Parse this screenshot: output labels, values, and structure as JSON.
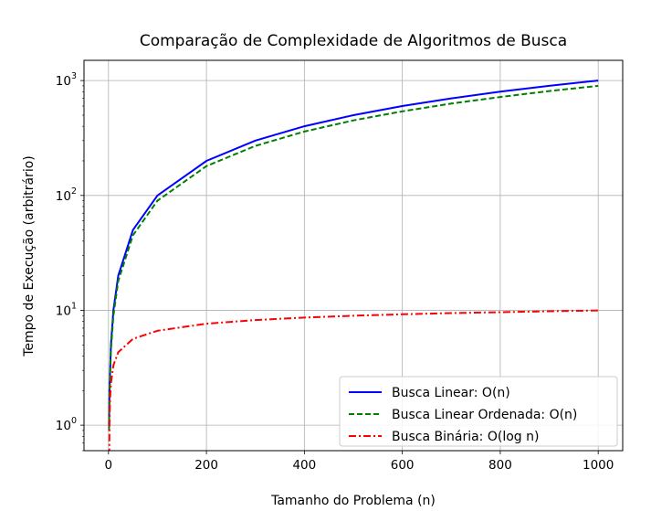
{
  "chart_data": {
    "type": "line",
    "title": "Comparação de Complexidade de Algoritmos de Busca",
    "xlabel": "Tamanho do Problema (n)",
    "ylabel": "Tempo de Execução (arbitrário)",
    "xscale": "linear",
    "yscale": "log",
    "xlim": [
      -50,
      1050
    ],
    "ylim": [
      0.6,
      1500
    ],
    "x_ticks": [
      0,
      200,
      400,
      600,
      800,
      1000
    ],
    "x_tick_labels": [
      "0",
      "200",
      "400",
      "600",
      "800",
      "1000"
    ],
    "y_ticks": [
      1,
      10,
      100,
      1000
    ],
    "y_tick_labels": [
      {
        "base": "10",
        "exp": "0"
      },
      {
        "base": "10",
        "exp": "1"
      },
      {
        "base": "10",
        "exp": "2"
      },
      {
        "base": "10",
        "exp": "3"
      }
    ],
    "grid": true,
    "legend_position": "lower-right",
    "series": [
      {
        "name": "Busca Linear: O(n)",
        "color": "#0000ff",
        "linestyle": "solid",
        "x": [
          1,
          2,
          5,
          10,
          20,
          50,
          100,
          200,
          300,
          400,
          500,
          600,
          700,
          800,
          900,
          1000
        ],
        "y": [
          1,
          2,
          5,
          10,
          20,
          50,
          100,
          200,
          300,
          400,
          500,
          600,
          700,
          800,
          900,
          1000
        ]
      },
      {
        "name": "Busca Linear Ordenada: O(n)",
        "color": "#008000",
        "linestyle": "dashed",
        "x": [
          1,
          2,
          5,
          10,
          20,
          50,
          100,
          200,
          300,
          400,
          500,
          600,
          700,
          800,
          900,
          1000
        ],
        "y": [
          0.9,
          1.8,
          4.5,
          9,
          18,
          45,
          90,
          180,
          270,
          360,
          450,
          540,
          630,
          720,
          810,
          900
        ]
      },
      {
        "name": "Busca Binária: O(log n)",
        "color": "#ff0000",
        "linestyle": "dashdot",
        "x": [
          1,
          2,
          3,
          5,
          10,
          20,
          50,
          100,
          200,
          300,
          400,
          500,
          600,
          700,
          800,
          900,
          1000
        ],
        "y": [
          0.0,
          1.0,
          1.58,
          2.32,
          3.32,
          4.32,
          5.64,
          6.64,
          7.64,
          8.23,
          8.64,
          8.97,
          9.23,
          9.45,
          9.64,
          9.81,
          9.97
        ]
      }
    ]
  }
}
